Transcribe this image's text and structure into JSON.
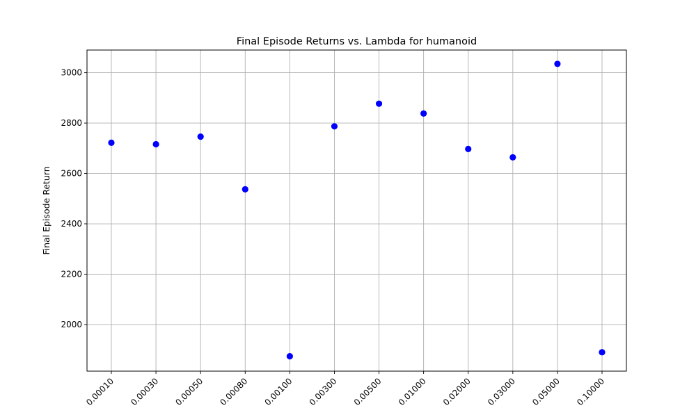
{
  "chart_data": {
    "type": "scatter",
    "title": "Final Episode Returns vs. Lambda for humanoid",
    "xlabel": "",
    "ylabel": "Final Episode Return",
    "categories": [
      "0.00010",
      "0.00030",
      "0.00050",
      "0.00080",
      "0.00100",
      "0.00300",
      "0.00500",
      "0.01000",
      "0.02000",
      "0.03000",
      "0.05000",
      "0.10000"
    ],
    "series": [
      {
        "values": [
          2722,
          2716,
          2746,
          2537,
          1874,
          2787,
          2877,
          2838,
          2697,
          2664,
          3035,
          1890
        ]
      }
    ],
    "ylim": [
      1815,
      3090
    ],
    "yticks": [
      2000,
      2200,
      2400,
      2600,
      2800,
      3000
    ],
    "grid": true,
    "marker_color": "#0000ff",
    "grid_color": "#b0b0b0"
  }
}
